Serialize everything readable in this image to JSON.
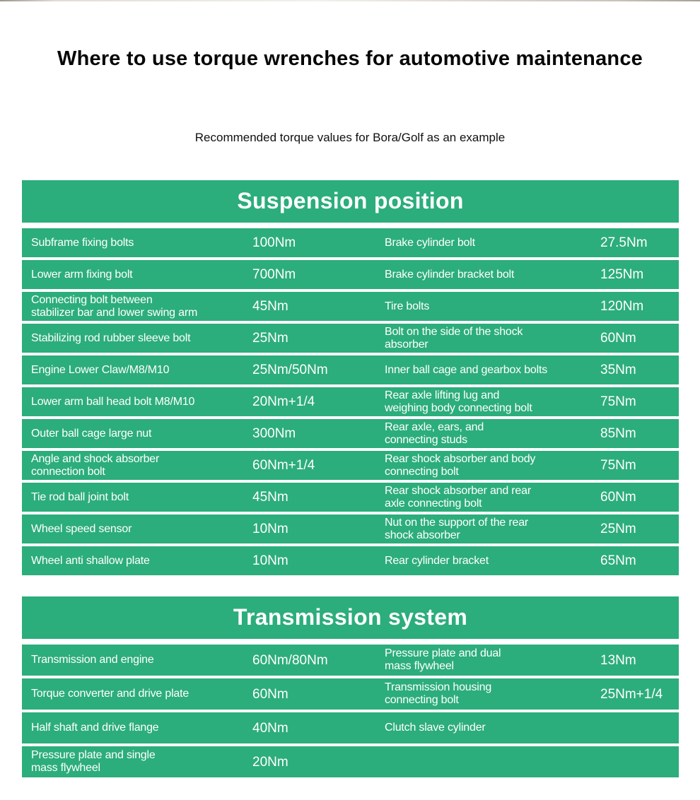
{
  "page": {
    "title": "Where to use torque wrenches for automotive maintenance",
    "subtitle": "Recommended torque values for Bora/Golf as an example"
  },
  "colors": {
    "table_green": "#2cad7c",
    "text_on_green": "#ffffff",
    "title_text": "#060606"
  },
  "sections": [
    {
      "header": "Suspension position",
      "rows": [
        {
          "part1": "Subframe fixing bolts",
          "torque1": "100Nm",
          "part2": "Brake cylinder bolt",
          "torque2": "27.5Nm"
        },
        {
          "part1": "Lower arm fixing bolt",
          "torque1": "700Nm",
          "part2": "Brake cylinder bracket bolt",
          "torque2": "125Nm"
        },
        {
          "part1": "Connecting bolt between\nstabilizer bar and lower swing arm",
          "torque1": "45Nm",
          "part2": "Tire bolts",
          "torque2": "120Nm"
        },
        {
          "part1": "Stabilizing rod rubber sleeve bolt",
          "torque1": "25Nm",
          "part2": "Bolt on the side of the shock\nabsorber",
          "torque2": "60Nm"
        },
        {
          "part1": "Engine Lower Claw/M8/M10",
          "torque1": "25Nm/50Nm",
          "part2": "Inner ball cage and gearbox bolts",
          "torque2": "35Nm"
        },
        {
          "part1": "Lower arm ball head bolt M8/M10",
          "torque1": "20Nm+1/4",
          "part2": "Rear axle lifting lug and\nweighing body connecting bolt",
          "torque2": "75Nm"
        },
        {
          "part1": "Outer ball cage large nut",
          "torque1": "300Nm",
          "part2": "Rear axle, ears, and\nconnecting studs",
          "torque2": "85Nm"
        },
        {
          "part1": "Angle and shock absorber\nconnection bolt",
          "torque1": "60Nm+1/4",
          "part2": "Rear shock absorber and body\nconnecting bolt",
          "torque2": "75Nm"
        },
        {
          "part1": "Tie rod ball joint bolt",
          "torque1": "45Nm",
          "part2": "Rear shock absorber and rear\naxle connecting bolt",
          "torque2": "60Nm"
        },
        {
          "part1": "Wheel speed sensor",
          "torque1": "10Nm",
          "part2": "Nut on the support of the rear\nshock absorber",
          "torque2": "25Nm"
        },
        {
          "part1": "Wheel anti shallow plate",
          "torque1": "10Nm",
          "part2": "Rear cylinder bracket",
          "torque2": "65Nm"
        }
      ]
    },
    {
      "header": "Transmission system",
      "rows": [
        {
          "part1": "Transmission and engine",
          "torque1": "60Nm/80Nm",
          "part2": "Pressure plate and dual\nmass flywheel",
          "torque2": "13Nm"
        },
        {
          "part1": "Torque converter and drive plate",
          "torque1": "60Nm",
          "part2": "Transmission housing\nconnecting bolt",
          "torque2": "25Nm+1/4"
        },
        {
          "part1": "Half shaft and drive flange",
          "torque1": "40Nm",
          "part2": "Clutch slave cylinder",
          "torque2": ""
        },
        {
          "part1": "Pressure plate and single\nmass flywheel",
          "torque1": "20Nm",
          "part2": "",
          "torque2": ""
        }
      ]
    }
  ]
}
